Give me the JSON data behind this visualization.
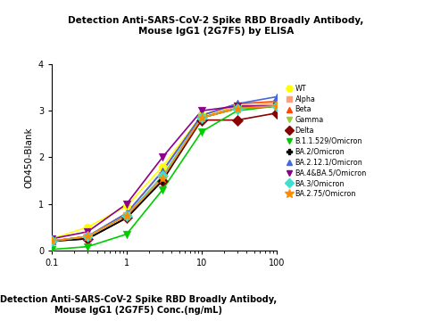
{
  "title": "Detection Anti-SARS-CoV-2 Spike RBD Broadly Antibody,\nMouse IgG1 (2G7F5) by ELISA",
  "xlabel": "Detection Anti-SARS-CoV-2 Spike RBD Broadly Antibody,\nMouse IgG1 (2G7F5) Conc.(ng/mL)",
  "ylabel": "OD450-Blank",
  "xlim": [
    0.1,
    100
  ],
  "ylim": [
    0,
    4
  ],
  "series": [
    {
      "label": "WT",
      "color": "#FFFF00",
      "marker": "o",
      "ec": "#cccc00",
      "x": [
        0.1,
        0.3,
        1,
        3,
        10,
        30,
        100
      ],
      "y": [
        0.25,
        0.5,
        0.95,
        1.8,
        2.9,
        3.1,
        3.15
      ],
      "ec50": 1.8,
      "hill": 1.8,
      "top": 3.15,
      "bottom": 0.22
    },
    {
      "label": "Alpha",
      "color": "#FFA07A",
      "marker": "s",
      "ec": "#cc7050",
      "x": [
        0.1,
        0.3,
        1,
        3,
        10,
        30,
        100
      ],
      "y": [
        0.2,
        0.3,
        0.75,
        1.6,
        2.85,
        3.1,
        3.15
      ],
      "ec50": 2.2,
      "hill": 1.8,
      "top": 3.15,
      "bottom": 0.18
    },
    {
      "label": "Beta",
      "color": "#FF4500",
      "marker": "^",
      "ec": "#FF4500",
      "x": [
        0.1,
        0.3,
        1,
        3,
        10,
        30,
        100
      ],
      "y": [
        0.2,
        0.3,
        0.8,
        1.7,
        2.9,
        3.15,
        3.2
      ],
      "ec50": 2.1,
      "hill": 1.8,
      "top": 3.2,
      "bottom": 0.18
    },
    {
      "label": "Gamma",
      "color": "#9ACD32",
      "marker": "v",
      "ec": "#9ACD32",
      "x": [
        0.1,
        0.3,
        1,
        3,
        10,
        30,
        100
      ],
      "y": [
        0.2,
        0.25,
        0.7,
        1.5,
        2.85,
        3.05,
        3.1
      ],
      "ec50": 2.3,
      "hill": 1.8,
      "top": 3.1,
      "bottom": 0.18
    },
    {
      "label": "Delta",
      "color": "#8B0000",
      "marker": "D",
      "ec": "#8B0000",
      "x": [
        0.1,
        0.3,
        1,
        3,
        10,
        30,
        100
      ],
      "y": [
        0.2,
        0.25,
        0.7,
        1.5,
        2.8,
        2.8,
        2.95
      ],
      "ec50": 2.3,
      "hill": 1.8,
      "top": 2.95,
      "bottom": 0.18
    },
    {
      "label": "B.1.1.529/Omicron",
      "color": "#00CC00",
      "marker": "v",
      "ec": "#00CC00",
      "x": [
        0.1,
        0.3,
        1,
        3,
        10,
        30,
        100
      ],
      "y": [
        0.02,
        0.08,
        0.35,
        1.3,
        2.55,
        3.0,
        3.1
      ],
      "ec50": 3.5,
      "hill": 2.2,
      "top": 3.1,
      "bottom": 0.02
    },
    {
      "label": "BA.2/Omicron",
      "color": "#000000",
      "marker": "P",
      "ec": "#000000",
      "x": [
        0.1,
        0.3,
        1,
        3,
        10,
        30,
        100
      ],
      "y": [
        0.2,
        0.25,
        0.7,
        1.5,
        2.85,
        3.05,
        3.1
      ],
      "ec50": 2.3,
      "hill": 1.8,
      "top": 3.1,
      "bottom": 0.18
    },
    {
      "label": "BA.2.12.1/Omicron",
      "color": "#4169E1",
      "marker": "^",
      "ec": "#4169E1",
      "x": [
        0.1,
        0.3,
        1,
        3,
        10,
        30,
        100
      ],
      "y": [
        0.2,
        0.3,
        0.8,
        1.7,
        2.9,
        3.15,
        3.3
      ],
      "ec50": 2.1,
      "hill": 1.8,
      "top": 3.3,
      "bottom": 0.18
    },
    {
      "label": "BA.4&BA.5/Omicron",
      "color": "#8B008B",
      "marker": "v",
      "ec": "#8B008B",
      "x": [
        0.1,
        0.3,
        1,
        3,
        10,
        30,
        100
      ],
      "y": [
        0.25,
        0.4,
        1.0,
        2.0,
        3.0,
        3.1,
        3.1
      ],
      "ec50": 1.6,
      "hill": 2.0,
      "top": 3.1,
      "bottom": 0.2
    },
    {
      "label": "BA.3/Omicron",
      "color": "#40E0D0",
      "marker": "D",
      "ec": "#40E0D0",
      "x": [
        0.1,
        0.3,
        1,
        3,
        10,
        30,
        100
      ],
      "y": [
        0.2,
        0.3,
        0.75,
        1.6,
        2.85,
        3.05,
        3.1
      ],
      "ec50": 2.2,
      "hill": 1.8,
      "top": 3.1,
      "bottom": 0.18
    },
    {
      "label": "BA.2.75/Omicron",
      "color": "#FF8C00",
      "marker": "*",
      "ec": "#FF8C00",
      "x": [
        0.1,
        0.3,
        1,
        3,
        10,
        30,
        100
      ],
      "y": [
        0.2,
        0.3,
        0.75,
        1.55,
        2.85,
        3.05,
        3.1
      ],
      "ec50": 2.2,
      "hill": 1.8,
      "top": 3.1,
      "bottom": 0.18
    }
  ]
}
